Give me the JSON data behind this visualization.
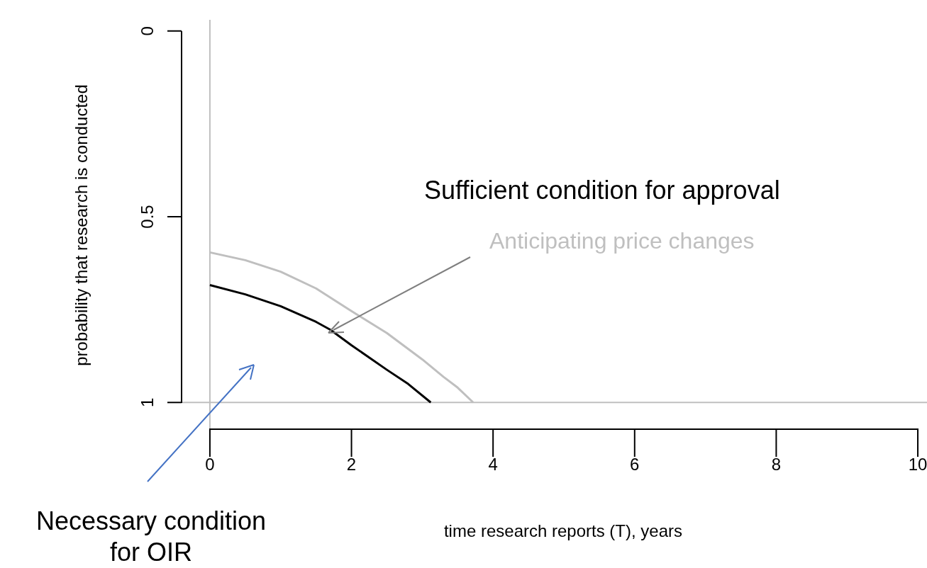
{
  "chart_data": {
    "type": "line",
    "xlabel": "time research reports (T), years",
    "ylabel": "probability that research is conducted",
    "xlim": [
      -0.4,
      10.2
    ],
    "xticks": [
      0,
      2,
      4,
      6,
      8,
      10
    ],
    "ylim": [
      1.07,
      -0.03
    ],
    "yticks": [
      0,
      0.5,
      1
    ],
    "marker": "none",
    "series": [
      {
        "name": "Anticipating price changes",
        "color": "#bfbfbf",
        "x": [
          0,
          0.5,
          1,
          1.5,
          2,
          2.5,
          3,
          3.3,
          3.5,
          3.72
        ],
        "values": [
          0.596,
          0.617,
          0.648,
          0.693,
          0.754,
          0.813,
          0.884,
          0.931,
          0.96,
          1
        ]
      },
      {
        "name": "Sufficient condition for approval",
        "color": "#000000",
        "x": [
          0,
          0.5,
          1,
          1.5,
          1.7,
          2,
          2.5,
          2.8,
          3.12
        ],
        "values": [
          0.684,
          0.709,
          0.741,
          0.783,
          0.804,
          0.846,
          0.912,
          0.95,
          1
        ]
      }
    ],
    "ref_lines": [
      {
        "axis": "x",
        "value": 0,
        "color": "#bfbfbf"
      },
      {
        "axis": "y",
        "value": 1,
        "color": "#bfbfbf"
      }
    ],
    "annotations": [
      "Necessary condition for OIR"
    ]
  }
}
